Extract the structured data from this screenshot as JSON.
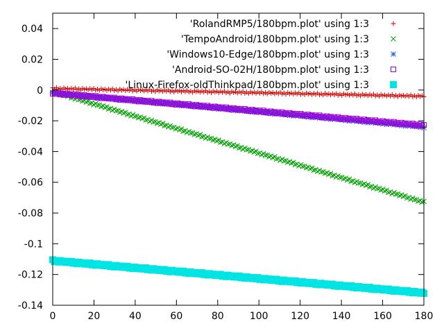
{
  "chart_data": {
    "type": "scatter",
    "title": "",
    "xlabel": "",
    "ylabel": "",
    "xlim": [
      0,
      180
    ],
    "ylim": [
      -0.14,
      0.05
    ],
    "x_ticks": [
      0,
      20,
      40,
      60,
      80,
      100,
      120,
      140,
      160,
      180
    ],
    "y_ticks": [
      0.04,
      0.02,
      0,
      -0.02,
      -0.04,
      -0.06,
      -0.08,
      -0.1,
      -0.12,
      -0.14
    ],
    "x_tick_labels": [
      "0",
      "20",
      "40",
      "60",
      "80",
      "100",
      "120",
      "140",
      "160",
      "180"
    ],
    "y_tick_labels": [
      "0.04",
      "0.02",
      "0",
      "-0.02",
      "-0.04",
      "-0.06",
      "-0.08",
      "-0.1",
      "-0.12",
      "-0.14"
    ],
    "grid": false,
    "legend_position": "top-right",
    "series": [
      {
        "name": "'RolandRMP5/180bpm.plot' using 1:3",
        "marker": "plus",
        "color": "#d00000",
        "x_start": 0,
        "x_end": 180,
        "y_start": 0.001,
        "y_end": -0.004,
        "points": 200
      },
      {
        "name": "'TempoAndroid/180bpm.plot' using 1:3",
        "marker": "cross",
        "color": "#00a000",
        "x_start": 0,
        "x_end": 180,
        "y_start": -0.001,
        "y_end": -0.073,
        "points": 200
      },
      {
        "name": "'Windows10-Edge/180bpm.plot' using 1:3",
        "marker": "star",
        "color": "#2a62d6",
        "x_start": 0,
        "x_end": 180,
        "y_start": -0.002,
        "y_end": -0.024,
        "points": 200
      },
      {
        "name": "'Android-SO-02H/180bpm.plot' using 1:3",
        "marker": "open-square",
        "color": "#a000d8",
        "x_start": 0,
        "x_end": 180,
        "y_start": -0.002,
        "y_end": -0.023,
        "points": 200
      },
      {
        "name": "'Linux-Firefox-oldThinkpad/180bpm.plot' using 1:3",
        "marker": "filled-square",
        "color": "#00e4e4",
        "x_start": 0,
        "x_end": 180,
        "y_start": -0.111,
        "y_end": -0.132,
        "points": 200
      }
    ]
  }
}
